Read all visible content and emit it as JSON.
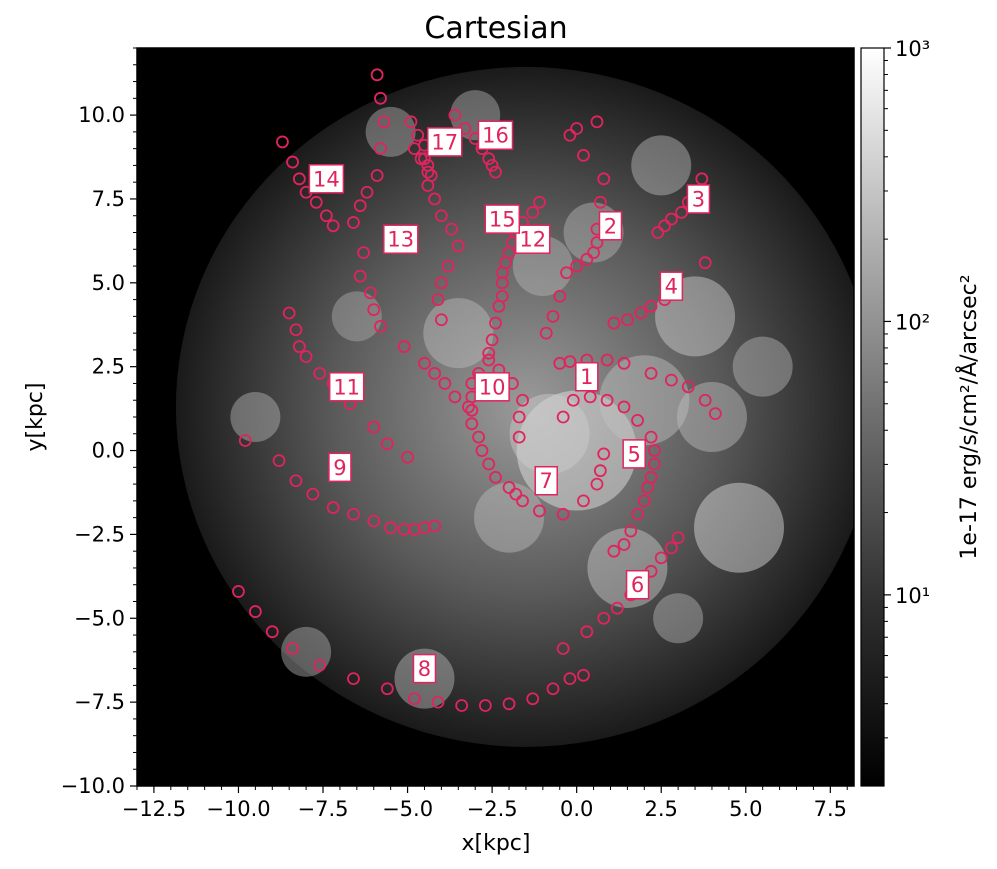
{
  "chart_data": {
    "type": "heatmap",
    "title": "Cartesian",
    "xlabel": "x[kpc]",
    "ylabel": "y[kpc]",
    "xlim": [
      -13.0,
      8.2
    ],
    "ylim": [
      -10.0,
      12.0
    ],
    "x_ticks": [
      -12.5,
      -10.0,
      -7.5,
      -5.0,
      -2.5,
      0.0,
      2.5,
      5.0,
      7.5
    ],
    "x_tick_labels": [
      "−12.5",
      "−10.0",
      "−7.5",
      "−5.0",
      "−2.5",
      "0.0",
      "2.5",
      "5.0",
      "7.5"
    ],
    "y_ticks": [
      -10.0,
      -7.5,
      -5.0,
      -2.5,
      0.0,
      2.5,
      5.0,
      7.5,
      10.0
    ],
    "y_tick_labels": [
      "−10.0",
      "−7.5",
      "−5.0",
      "−2.5",
      "0.0",
      "2.5",
      "5.0",
      "7.5",
      "10.0"
    ],
    "colorbar": {
      "label": "1e-17 erg/s/cm²/Å/arcsec²",
      "scale": "log",
      "range": [
        2,
        1000
      ],
      "colormap": "gray",
      "ticks": [
        10,
        100,
        1000
      ],
      "tick_labels": [
        "10¹",
        "10²",
        "10³"
      ]
    },
    "overlay_color": "#e0245e",
    "arms": [
      {
        "label": "1",
        "label_pos": [
          0.3,
          2.2
        ],
        "points": [
          [
            -0.5,
            2.6
          ],
          [
            -0.2,
            2.65
          ],
          [
            0.3,
            2.7
          ],
          [
            0.9,
            2.7
          ],
          [
            1.4,
            2.6
          ],
          [
            2.2,
            2.3
          ],
          [
            2.8,
            2.1
          ],
          [
            3.3,
            1.9
          ],
          [
            3.8,
            1.5
          ],
          [
            4.1,
            1.1
          ]
        ]
      },
      {
        "label": "2",
        "label_pos": [
          1.0,
          6.7
        ],
        "points": [
          [
            0.0,
            9.6
          ],
          [
            0.6,
            9.8
          ],
          [
            -0.2,
            9.4
          ],
          [
            0.2,
            8.8
          ],
          [
            0.8,
            8.1
          ],
          [
            0.7,
            7.4
          ],
          [
            0.6,
            6.6
          ],
          [
            0.6,
            6.2
          ],
          [
            0.5,
            5.9
          ],
          [
            0.3,
            5.7
          ],
          [
            0.0,
            5.5
          ],
          [
            -0.3,
            5.3
          ],
          [
            -0.5,
            4.6
          ],
          [
            -0.7,
            4.0
          ],
          [
            -0.9,
            3.5
          ]
        ]
      },
      {
        "label": "3",
        "label_pos": [
          3.6,
          7.5
        ],
        "points": [
          [
            3.7,
            8.1
          ],
          [
            3.3,
            7.4
          ],
          [
            3.1,
            7.1
          ],
          [
            2.8,
            6.9
          ],
          [
            2.6,
            6.7
          ],
          [
            2.4,
            6.5
          ]
        ]
      },
      {
        "label": "4",
        "label_pos": [
          2.8,
          4.9
        ],
        "points": [
          [
            3.8,
            5.6
          ],
          [
            2.6,
            4.5
          ],
          [
            2.2,
            4.3
          ],
          [
            1.9,
            4.1
          ],
          [
            1.5,
            3.9
          ],
          [
            1.1,
            3.8
          ]
        ]
      },
      {
        "label": "5",
        "label_pos": [
          1.7,
          -0.1
        ],
        "points": [
          [
            -0.4,
            1.0
          ],
          [
            -0.1,
            1.5
          ],
          [
            0.4,
            1.6
          ],
          [
            0.9,
            1.5
          ],
          [
            1.4,
            1.3
          ],
          [
            1.8,
            0.9
          ],
          [
            2.2,
            0.4
          ],
          [
            2.3,
            0.0
          ],
          [
            2.3,
            -0.4
          ],
          [
            2.2,
            -0.8
          ],
          [
            2.1,
            -1.1
          ],
          [
            2.0,
            -1.5
          ],
          [
            1.8,
            -1.9
          ],
          [
            1.6,
            -2.4
          ],
          [
            1.4,
            -2.8
          ],
          [
            1.1,
            -3.0
          ]
        ]
      },
      {
        "label": "6",
        "label_pos": [
          1.8,
          -4.0
        ],
        "points": [
          [
            3.0,
            -2.6
          ],
          [
            2.8,
            -2.9
          ],
          [
            2.5,
            -3.2
          ],
          [
            2.2,
            -3.6
          ],
          [
            1.9,
            -3.9
          ],
          [
            1.6,
            -4.3
          ],
          [
            1.2,
            -4.7
          ],
          [
            0.8,
            -5.0
          ],
          [
            0.3,
            -5.4
          ],
          [
            -0.4,
            -5.9
          ]
        ]
      },
      {
        "label": "7",
        "label_pos": [
          -0.9,
          -0.9
        ],
        "points": [
          [
            -1.1,
            -1.8
          ],
          [
            -0.4,
            -1.9
          ],
          [
            0.2,
            -1.5
          ],
          [
            0.6,
            -1.0
          ],
          [
            0.7,
            -0.6
          ],
          [
            0.8,
            -0.1
          ]
        ]
      },
      {
        "label": "8",
        "label_pos": [
          -4.5,
          -6.5
        ],
        "points": [
          [
            -10.0,
            -4.2
          ],
          [
            -9.5,
            -4.8
          ],
          [
            -9.0,
            -5.4
          ],
          [
            -8.4,
            -5.9
          ],
          [
            -7.6,
            -6.4
          ],
          [
            -6.6,
            -6.8
          ],
          [
            -5.6,
            -7.1
          ],
          [
            -4.8,
            -7.4
          ],
          [
            -4.1,
            -7.5
          ],
          [
            -3.4,
            -7.6
          ],
          [
            -2.7,
            -7.6
          ],
          [
            -2.0,
            -7.55
          ],
          [
            -1.3,
            -7.4
          ],
          [
            -0.7,
            -7.1
          ],
          [
            -0.2,
            -6.8
          ],
          [
            0.2,
            -6.7
          ]
        ]
      },
      {
        "label": "9",
        "label_pos": [
          -7.0,
          -0.5
        ],
        "points": [
          [
            -9.8,
            0.3
          ],
          [
            -8.8,
            -0.3
          ],
          [
            -8.3,
            -0.9
          ],
          [
            -7.8,
            -1.3
          ],
          [
            -7.2,
            -1.7
          ],
          [
            -6.6,
            -1.9
          ],
          [
            -6.0,
            -2.1
          ],
          [
            -5.5,
            -2.3
          ],
          [
            -5.1,
            -2.35
          ],
          [
            -4.8,
            -2.35
          ],
          [
            -4.5,
            -2.3
          ],
          [
            -4.2,
            -2.25
          ]
        ]
      },
      {
        "label": "10",
        "label_pos": [
          -2.5,
          1.9
        ],
        "points": [
          [
            -2.6,
            2.7
          ],
          [
            -2.9,
            2.3
          ],
          [
            -3.1,
            2.0
          ],
          [
            -3.1,
            1.6
          ],
          [
            -3.1,
            1.2
          ],
          [
            -3.1,
            0.8
          ],
          [
            -2.9,
            0.4
          ],
          [
            -2.8,
            0.0
          ],
          [
            -2.6,
            -0.4
          ],
          [
            -2.4,
            -0.8
          ],
          [
            -2.0,
            -1.1
          ],
          [
            -1.8,
            -1.3
          ],
          [
            -1.6,
            -1.5
          ]
        ]
      },
      {
        "label": "11",
        "label_pos": [
          -6.8,
          1.9
        ],
        "points": [
          [
            -8.5,
            4.1
          ],
          [
            -8.3,
            3.6
          ],
          [
            -8.2,
            3.1
          ],
          [
            -8.0,
            2.8
          ],
          [
            -7.6,
            2.3
          ],
          [
            -7.2,
            2.0
          ],
          [
            -6.7,
            1.4
          ],
          [
            -6.0,
            0.7
          ],
          [
            -5.6,
            0.2
          ],
          [
            -5.0,
            -0.2
          ]
        ]
      },
      {
        "label": "12",
        "label_pos": [
          -1.3,
          6.3
        ],
        "points": [
          [
            -1.1,
            7.4
          ],
          [
            -1.3,
            7.1
          ],
          [
            -1.6,
            6.8
          ],
          [
            -1.8,
            6.5
          ],
          [
            -1.9,
            6.2
          ],
          [
            -2.0,
            5.9
          ],
          [
            -2.1,
            5.6
          ],
          [
            -2.2,
            5.3
          ],
          [
            -2.2,
            5.0
          ],
          [
            -2.2,
            4.6
          ],
          [
            -2.3,
            4.3
          ],
          [
            -2.4,
            3.8
          ],
          [
            -2.5,
            3.3
          ],
          [
            -2.6,
            2.9
          ],
          [
            -2.3,
            2.4
          ],
          [
            -1.9,
            2.0
          ],
          [
            -1.6,
            1.5
          ],
          [
            -1.7,
            1.0
          ],
          [
            -1.7,
            0.4
          ]
        ]
      },
      {
        "label": "13",
        "label_pos": [
          -5.2,
          6.3
        ],
        "points": [
          [
            -5.9,
            11.2
          ],
          [
            -5.8,
            10.5
          ],
          [
            -5.7,
            9.8
          ],
          [
            -5.8,
            9.0
          ],
          [
            -5.9,
            8.2
          ],
          [
            -6.2,
            7.7
          ],
          [
            -6.4,
            7.3
          ],
          [
            -6.6,
            6.8
          ],
          [
            -6.3,
            5.9
          ],
          [
            -6.4,
            5.2
          ],
          [
            -6.1,
            4.7
          ],
          [
            -6.0,
            4.2
          ],
          [
            -5.8,
            3.7
          ],
          [
            -5.1,
            3.1
          ],
          [
            -4.5,
            2.6
          ],
          [
            -4.2,
            2.3
          ],
          [
            -3.9,
            2.0
          ],
          [
            -3.6,
            1.6
          ],
          [
            -3.2,
            1.3
          ]
        ]
      },
      {
        "label": "14",
        "label_pos": [
          -7.4,
          8.1
        ],
        "points": [
          [
            -8.7,
            9.2
          ],
          [
            -8.4,
            8.6
          ],
          [
            -8.2,
            8.1
          ],
          [
            -8.0,
            7.7
          ],
          [
            -7.7,
            7.4
          ],
          [
            -7.4,
            7.0
          ],
          [
            -7.2,
            6.7
          ]
        ]
      },
      {
        "label": "15",
        "label_pos": [
          -2.2,
          6.9
        ],
        "points": [
          [
            -4.8,
            9.0
          ],
          [
            -4.6,
            8.7
          ],
          [
            -4.4,
            8.3
          ],
          [
            -4.4,
            7.9
          ],
          [
            -4.2,
            7.5
          ],
          [
            -4.0,
            7.0
          ],
          [
            -3.7,
            6.6
          ],
          [
            -3.5,
            6.1
          ],
          [
            -3.8,
            5.5
          ],
          [
            -4.0,
            5.0
          ],
          [
            -4.1,
            4.5
          ],
          [
            -4.0,
            3.9
          ]
        ]
      },
      {
        "label": "16",
        "label_pos": [
          -2.4,
          9.4
        ],
        "points": [
          [
            -3.6,
            10.0
          ],
          [
            -3.3,
            9.6
          ],
          [
            -3.0,
            9.3
          ],
          [
            -2.8,
            9.0
          ],
          [
            -2.6,
            8.7
          ],
          [
            -2.5,
            8.5
          ],
          [
            -2.4,
            8.3
          ]
        ]
      },
      {
        "label": "17",
        "label_pos": [
          -3.9,
          9.2
        ],
        "points": [
          [
            -4.9,
            9.8
          ],
          [
            -4.7,
            9.4
          ],
          [
            -4.5,
            9.1
          ],
          [
            -4.5,
            8.7
          ],
          [
            -4.4,
            8.5
          ],
          [
            -4.3,
            8.2
          ]
        ]
      }
    ]
  }
}
